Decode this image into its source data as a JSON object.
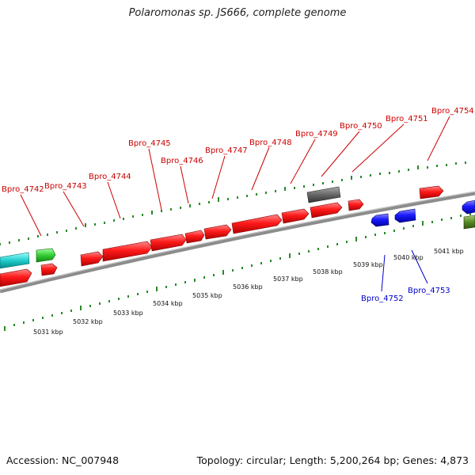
{
  "title": "Polaromonas sp. JS666, complete genome",
  "footer": {
    "accession": "Accession: NC_007948",
    "summary": "Topology: circular; Length: 5,200,264 bp; Genes: 4,873"
  },
  "colors": {
    "forward_gene": "#ff1a1a",
    "reverse_gene": "#1a1aff",
    "label_forward": "#cc0000",
    "label_reverse": "#0000cc",
    "tick": "#2a8a2a",
    "backbone": "#909090",
    "teal_feature": "#22cccc",
    "green_feature": "#33cc33",
    "gray_feature": "#666666",
    "olive_feature": "#558822"
  },
  "ruler_labels": [
    "5031 kbp",
    "5032 kbp",
    "5033 kbp",
    "5034 kbp",
    "5035 kbp",
    "5036 kbp",
    "5037 kbp",
    "5038 kbp",
    "5039 kbp",
    "5040 kbp",
    "5041 kbp"
  ],
  "forward_gene_labels": [
    "Bpro_4742",
    "Bpro_4743",
    "Bpro_4744",
    "Bpro_4745",
    "Bpro_4746",
    "Bpro_4747",
    "Bpro_4748",
    "Bpro_4749",
    "Bpro_4750",
    "Bpro_4751",
    "Bpro_4754"
  ],
  "reverse_gene_labels": [
    "Bpro_4752",
    "Bpro_4753"
  ]
}
